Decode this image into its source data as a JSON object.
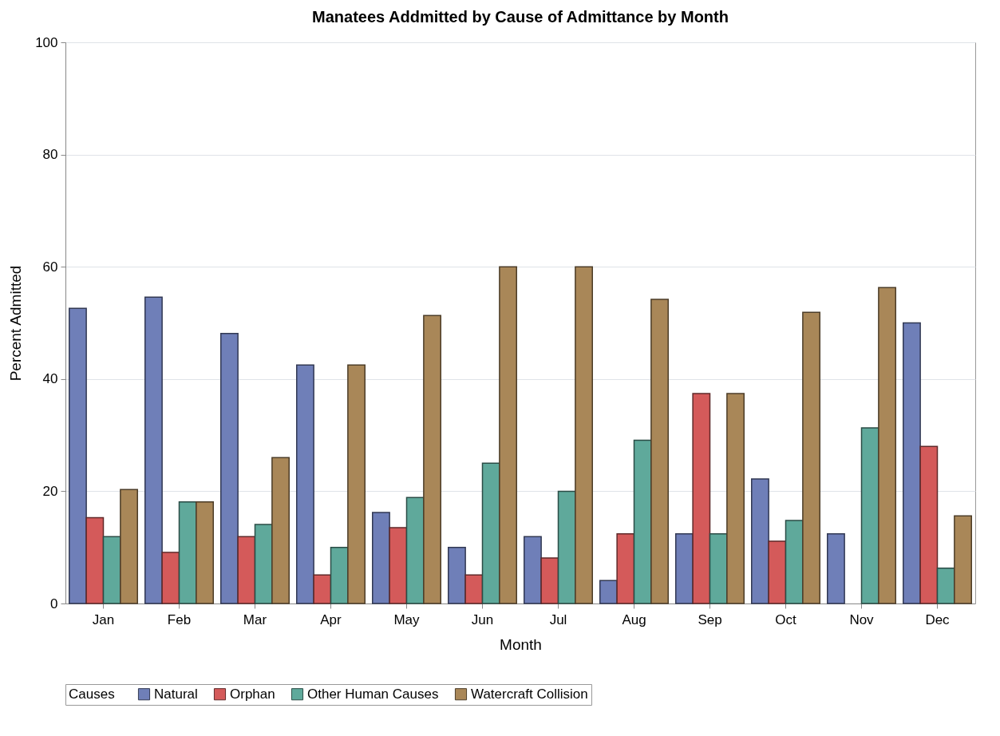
{
  "chart_data": {
    "type": "bar",
    "title": "Manatees Addmitted by Cause of Admittance by Month",
    "xlabel": "Month",
    "ylabel": "Percent Admitted",
    "legend_title": "Causes",
    "categories": [
      "Jan",
      "Feb",
      "Mar",
      "Apr",
      "May",
      "Jun",
      "Jul",
      "Aug",
      "Sep",
      "Oct",
      "Nov",
      "Dec"
    ],
    "series": [
      {
        "name": "Natural",
        "color": "#6f7fb8",
        "values": [
          52.6,
          54.6,
          48.1,
          42.5,
          16.2,
          10,
          11.9,
          4.1,
          12.4,
          22.2,
          12.4,
          50
        ]
      },
      {
        "name": "Orphan",
        "color": "#d45a5a",
        "values": [
          15.3,
          9.1,
          11.9,
          5.1,
          13.5,
          5.1,
          8.1,
          12.4,
          37.4,
          11.1,
          null,
          28
        ]
      },
      {
        "name": "Other Human Causes",
        "color": "#5fa99b",
        "values": [
          11.9,
          18.1,
          14.1,
          10,
          18.9,
          25,
          20,
          29.1,
          12.4,
          14.8,
          31.3,
          6.3
        ]
      },
      {
        "name": "Watercraft Collision",
        "color": "#a98758",
        "values": [
          20.3,
          18.1,
          26,
          42.5,
          51.3,
          60,
          60,
          54.2,
          37.4,
          51.9,
          56.3,
          15.6
        ]
      }
    ],
    "ylim": [
      0,
      100
    ],
    "yticks": [
      0,
      20,
      40,
      60,
      80,
      100
    ],
    "grid": "y",
    "legend": "bottom"
  }
}
